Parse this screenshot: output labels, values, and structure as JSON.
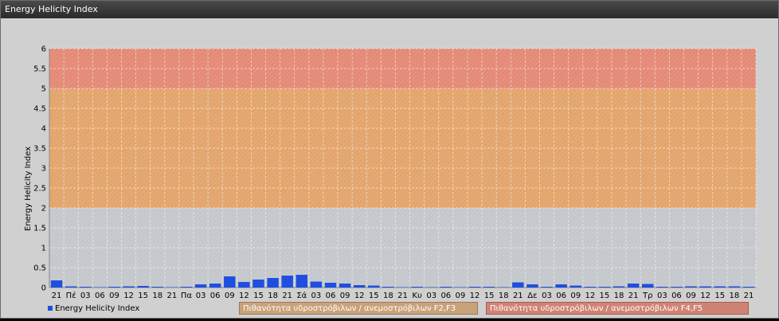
{
  "window": {
    "title": "Energy Helicity Index"
  },
  "colors": {
    "series": "#1f4fe0",
    "band_low": "#c4c8cc",
    "band_mid": "#e3a56d",
    "band_high": "#e48a77"
  },
  "legend": {
    "series_label": "Energy Helicity Index",
    "band_f23": "Πιθανότητα υδροστρόβιλων / ανεμοστρόβιλων F2,F3",
    "band_f45": "Πιθανότητα υδροστρόβιλων / ανεμοστρόβιλων F4,F5"
  },
  "chart_data": {
    "type": "bar",
    "ylabel": "Energy Helicity Index",
    "ylim": [
      0,
      6
    ],
    "yticks": [
      "0",
      "0.5",
      "1",
      "1.5",
      "2",
      "2.5",
      "3",
      "3.5",
      "4",
      "4.5",
      "5",
      "5.5",
      "6"
    ],
    "bands": [
      {
        "from": 0,
        "to": 2,
        "label": ""
      },
      {
        "from": 2,
        "to": 5,
        "label": "Πιθανότητα υδροστρόβιλων / ανεμοστρόβιλων F2,F3"
      },
      {
        "from": 5,
        "to": 6,
        "label": "Πιθανότητα υδροστρόβιλων / ανεμοστρόβιλων F4,F5"
      }
    ],
    "categories": [
      "21",
      "Πέ",
      "03",
      "06",
      "09",
      "12",
      "15",
      "18",
      "21",
      "Πα",
      "03",
      "06",
      "09",
      "12",
      "15",
      "18",
      "21",
      "Σά",
      "03",
      "06",
      "09",
      "12",
      "15",
      "18",
      "21",
      "Κυ",
      "03",
      "06",
      "09",
      "12",
      "15",
      "18",
      "21",
      "Δε",
      "03",
      "06",
      "09",
      "12",
      "15",
      "18",
      "21",
      "Τρ",
      "03",
      "06",
      "09",
      "12",
      "15",
      "18",
      "21"
    ],
    "series": [
      {
        "name": "Energy Helicity Index",
        "values": [
          0.18,
          0.03,
          0.02,
          0.01,
          0.02,
          0.03,
          0.04,
          0.02,
          0.01,
          0.02,
          0.08,
          0.1,
          0.28,
          0.14,
          0.2,
          0.24,
          0.3,
          0.32,
          0.15,
          0.12,
          0.1,
          0.06,
          0.05,
          0.02,
          0.01,
          0.02,
          0.01,
          0.02,
          0.01,
          0.02,
          0.02,
          0.01,
          0.13,
          0.08,
          0.02,
          0.08,
          0.05,
          0.02,
          0.02,
          0.03,
          0.1,
          0.09,
          0.02,
          0.02,
          0.03,
          0.03,
          0.03,
          0.03,
          0.02
        ]
      }
    ]
  }
}
